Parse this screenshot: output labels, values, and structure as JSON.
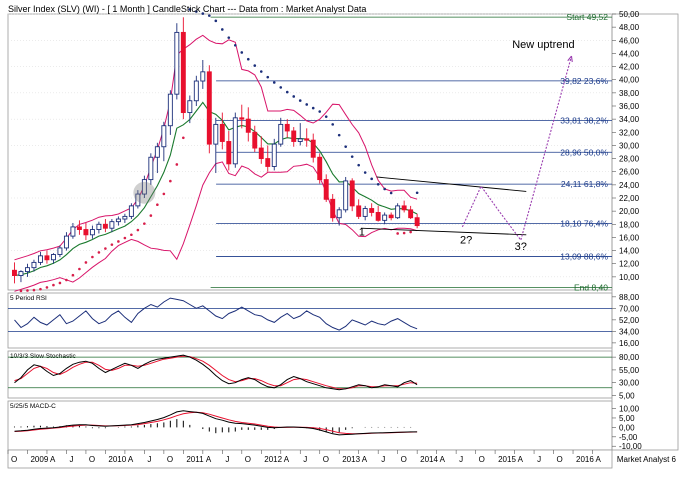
{
  "chart_data": {
    "type": "candlestick",
    "title": "Silver Index (SLV) (WI) - [ 1 Month ] CandleStick Chart --- Data from : Market Analyst Data",
    "ylim": [
      8,
      50
    ],
    "y_ticks": [
      "50,00",
      "48,00",
      "46,00",
      "44,00",
      "42,00",
      "40,00",
      "38,00",
      "36,00",
      "34,00",
      "32,00",
      "30,00",
      "28,00",
      "26,00",
      "24,00",
      "22,00",
      "20,00",
      "18,00",
      "16,00",
      "14,00",
      "12,00",
      "10,00"
    ],
    "x_labels": [
      "O",
      "2009",
      "A",
      "J",
      "O",
      "2010",
      "A",
      "J",
      "O",
      "2011",
      "A",
      "J",
      "O",
      "2012",
      "A",
      "J",
      "O",
      "2013",
      "A",
      "J",
      "O",
      "2014",
      "A",
      "J",
      "O",
      "2015",
      "A",
      "J",
      "O",
      "2016",
      "A"
    ],
    "x_start": 2008.75,
    "x_end": 2016.5,
    "watermark": "Market Analyst 6",
    "candles": [
      [
        11.0,
        12.2,
        9.0,
        10.2
      ],
      [
        10.2,
        11.0,
        9.2,
        10.8
      ],
      [
        10.8,
        12.0,
        10.0,
        11.4
      ],
      [
        11.4,
        12.6,
        10.8,
        12.2
      ],
      [
        12.2,
        13.8,
        11.8,
        13.2
      ],
      [
        13.2,
        14.0,
        12.0,
        12.6
      ],
      [
        12.6,
        13.6,
        12.0,
        13.4
      ],
      [
        13.4,
        14.8,
        13.0,
        14.4
      ],
      [
        14.4,
        16.8,
        14.0,
        16.2
      ],
      [
        16.2,
        18.2,
        15.8,
        17.6
      ],
      [
        17.6,
        18.6,
        16.4,
        17.2
      ],
      [
        17.2,
        18.2,
        15.6,
        16.4
      ],
      [
        16.4,
        17.8,
        15.8,
        17.2
      ],
      [
        17.2,
        18.4,
        16.6,
        18.0
      ],
      [
        18.0,
        18.8,
        16.8,
        17.4
      ],
      [
        17.4,
        18.8,
        16.8,
        18.4
      ],
      [
        18.4,
        19.2,
        17.8,
        18.8
      ],
      [
        18.8,
        19.6,
        18.2,
        19.2
      ],
      [
        19.2,
        21.2,
        18.8,
        20.8
      ],
      [
        20.8,
        23.2,
        20.4,
        22.6
      ],
      [
        22.6,
        25.4,
        22.0,
        24.8
      ],
      [
        24.8,
        28.8,
        24.0,
        28.2
      ],
      [
        28.2,
        30.4,
        25.8,
        29.8
      ],
      [
        29.8,
        33.6,
        27.6,
        33.0
      ],
      [
        33.0,
        38.4,
        31.6,
        37.8
      ],
      [
        37.8,
        48.6,
        37.0,
        47.2
      ],
      [
        47.2,
        49.5,
        34.0,
        35.0
      ],
      [
        35.0,
        37.6,
        33.4,
        36.8
      ],
      [
        36.8,
        40.6,
        36.0,
        39.8
      ],
      [
        39.8,
        43.0,
        38.6,
        41.2
      ],
      [
        41.2,
        42.2,
        28.8,
        30.2
      ],
      [
        30.2,
        34.2,
        25.8,
        33.2
      ],
      [
        33.2,
        35.0,
        29.4,
        30.6
      ],
      [
        30.6,
        32.2,
        26.2,
        27.2
      ],
      [
        27.2,
        35.0,
        26.6,
        34.2
      ],
      [
        34.2,
        36.2,
        32.6,
        34.0
      ],
      [
        34.0,
        35.8,
        30.6,
        32.0
      ],
      [
        32.0,
        33.0,
        29.0,
        29.6
      ],
      [
        29.6,
        31.4,
        27.2,
        28.0
      ],
      [
        28.0,
        30.0,
        26.0,
        26.8
      ],
      [
        26.8,
        31.0,
        26.2,
        30.2
      ],
      [
        30.2,
        34.2,
        29.8,
        33.2
      ],
      [
        33.2,
        34.0,
        31.2,
        32.2
      ],
      [
        32.2,
        32.8,
        29.8,
        30.6
      ],
      [
        30.6,
        33.4,
        30.0,
        31.0
      ],
      [
        31.0,
        32.6,
        29.8,
        30.8
      ],
      [
        30.8,
        31.8,
        27.4,
        28.2
      ],
      [
        28.2,
        28.8,
        24.2,
        24.8
      ],
      [
        24.8,
        25.6,
        21.4,
        21.8
      ],
      [
        21.8,
        22.6,
        18.4,
        19.0
      ],
      [
        19.0,
        20.6,
        17.8,
        20.2
      ],
      [
        20.2,
        25.2,
        19.8,
        24.6
      ],
      [
        24.6,
        25.0,
        20.0,
        20.8
      ],
      [
        20.8,
        21.8,
        18.8,
        19.2
      ],
      [
        19.2,
        20.8,
        18.6,
        20.4
      ],
      [
        20.4,
        21.2,
        19.2,
        19.8
      ],
      [
        19.8,
        20.8,
        18.4,
        18.6
      ],
      [
        18.6,
        19.8,
        18.0,
        19.4
      ],
      [
        19.4,
        19.8,
        18.6,
        19.0
      ],
      [
        19.0,
        21.2,
        18.8,
        20.8
      ],
      [
        20.8,
        21.6,
        19.8,
        20.2
      ],
      [
        20.2,
        20.8,
        18.8,
        19.0
      ],
      [
        19.0,
        19.6,
        17.4,
        17.8
      ]
    ],
    "fib_levels": [
      {
        "value": 49.52,
        "label": "Start 49,52"
      },
      {
        "value": 39.82,
        "label": "39,82 23,6%"
      },
      {
        "value": 33.81,
        "label": "33,81 38,2%"
      },
      {
        "value": 28.96,
        "label": "28,96 50,0%"
      },
      {
        "value": 24.11,
        "label": "24,11 61,8%"
      },
      {
        "value": 18.1,
        "label": "18,10 76,4%"
      },
      {
        "value": 13.09,
        "label": "13,09 88,6%"
      },
      {
        "value": 8.4,
        "label": "End 8,40"
      }
    ],
    "annotations": [
      "New uptrend",
      "1",
      "2?",
      "3?"
    ],
    "projection": [
      [
        2014.58,
        17.6
      ],
      [
        2014.82,
        23.8
      ],
      [
        2015.05,
        20.0
      ],
      [
        2015.33,
        15.6
      ],
      [
        2015.98,
        43.6
      ]
    ],
    "triangle": {
      "upper": [
        [
          2013.48,
          25.2
        ],
        [
          2015.4,
          23.0
        ]
      ],
      "lower": [
        [
          2013.28,
          17.4
        ],
        [
          2015.4,
          16.4
        ]
      ]
    },
    "indicators": [
      {
        "name": "5 Period RSI",
        "ticks": [
          "88,00",
          "70,00",
          "52,00",
          "34,00",
          "16,00"
        ],
        "lines": [
          70,
          34
        ],
        "values": [
          52,
          40,
          46,
          56,
          48,
          44,
          52,
          60,
          46,
          50,
          58,
          66,
          54,
          46,
          50,
          60,
          66,
          56,
          48,
          62,
          70,
          76,
          72,
          80,
          86,
          84,
          82,
          76,
          70,
          74,
          66,
          58,
          54,
          62,
          66,
          72,
          66,
          60,
          58,
          52,
          48,
          56,
          62,
          54,
          58,
          66,
          60,
          56,
          46,
          40,
          36,
          42,
          52,
          48,
          44,
          50,
          46,
          44,
          50,
          54,
          48,
          42,
          38
        ]
      },
      {
        "name": "10/3/3 Slow Stochastic",
        "ticks": [
          "80,00",
          "55,00",
          "30,00",
          "5,00"
        ],
        "lines": [
          80,
          20
        ],
        "k": [
          30,
          40,
          55,
          65,
          62,
          52,
          44,
          48,
          58,
          66,
          70,
          72,
          68,
          58,
          50,
          56,
          62,
          68,
          64,
          58,
          66,
          72,
          76,
          78,
          80,
          82,
          84,
          80,
          74,
          66,
          56,
          44,
          34,
          28,
          30,
          36,
          40,
          36,
          28,
          22,
          20,
          26,
          36,
          42,
          38,
          32,
          28,
          24,
          20,
          18,
          16,
          18,
          22,
          26,
          24,
          20,
          22,
          26,
          24,
          22,
          30,
          34,
          26
        ],
        "d": [
          34,
          38,
          48,
          58,
          62,
          58,
          50,
          46,
          52,
          60,
          66,
          70,
          70,
          64,
          56,
          54,
          58,
          64,
          64,
          62,
          64,
          68,
          72,
          76,
          78,
          80,
          82,
          81,
          77,
          72,
          64,
          54,
          44,
          36,
          32,
          34,
          38,
          38,
          34,
          28,
          24,
          24,
          30,
          36,
          38,
          36,
          32,
          28,
          24,
          21,
          18,
          18,
          20,
          24,
          24,
          22,
          22,
          24,
          24,
          24,
          27,
          30,
          29
        ]
      },
      {
        "name": "5/25/5 MACD-C",
        "ticks": [
          "10,00",
          "5,00",
          "0,00",
          "-5,00",
          "-10,00"
        ],
        "macd": [
          -2.0,
          -1.8,
          -1.5,
          -1.0,
          -0.6,
          -0.4,
          -0.2,
          0.2,
          0.8,
          1.2,
          1.4,
          1.4,
          1.0,
          0.8,
          0.6,
          0.8,
          1.0,
          1.2,
          1.4,
          2.0,
          2.6,
          3.4,
          4.2,
          5.2,
          6.6,
          8.2,
          8.8,
          8.4,
          8.0,
          7.4,
          6.0,
          4.6,
          3.8,
          2.8,
          2.2,
          2.0,
          1.6,
          1.2,
          0.6,
          0.0,
          -0.2,
          0.0,
          0.2,
          0.2,
          0.0,
          -0.2,
          -0.6,
          -1.4,
          -2.4,
          -3.4,
          -4.0,
          -3.8,
          -3.6,
          -3.4,
          -3.2,
          -3.0,
          -2.9,
          -2.8,
          -2.7,
          -2.6,
          -2.5,
          -2.4,
          -2.4
        ],
        "signal": [
          -2.2,
          -2.0,
          -1.8,
          -1.4,
          -1.0,
          -0.7,
          -0.4,
          -0.1,
          0.3,
          0.7,
          1.0,
          1.2,
          1.2,
          1.0,
          0.8,
          0.8,
          0.9,
          1.0,
          1.2,
          1.5,
          2.0,
          2.6,
          3.2,
          4.0,
          5.0,
          6.2,
          7.2,
          7.8,
          8.0,
          7.8,
          7.0,
          6.0,
          5.0,
          4.0,
          3.2,
          2.6,
          2.2,
          1.8,
          1.2,
          0.6,
          0.2,
          0.0,
          0.0,
          0.1,
          0.1,
          0.0,
          -0.2,
          -0.6,
          -1.2,
          -2.0,
          -2.8,
          -3.2,
          -3.4,
          -3.4,
          -3.3,
          -3.1,
          -3.0,
          -2.9,
          -2.8,
          -2.7,
          -2.6,
          -2.5,
          -2.4
        ]
      }
    ]
  },
  "colors": {
    "bull": "#1c2f7a",
    "bear": "#e8102e",
    "boll": "#d8156a",
    "ema": "#1a7a2e",
    "psar": "#d81e4a",
    "psar_dark": "#1c2f7a",
    "fib": "#1a3a8a",
    "fib_green": "#1e6b2e",
    "projection": "#9b3fb0",
    "grid": "#d7d7d7",
    "ind_line": "#1c2f7a",
    "ind_red": "#e8102e",
    "level_line": "#1a3a8a",
    "level_green": "#1e6b2e"
  }
}
